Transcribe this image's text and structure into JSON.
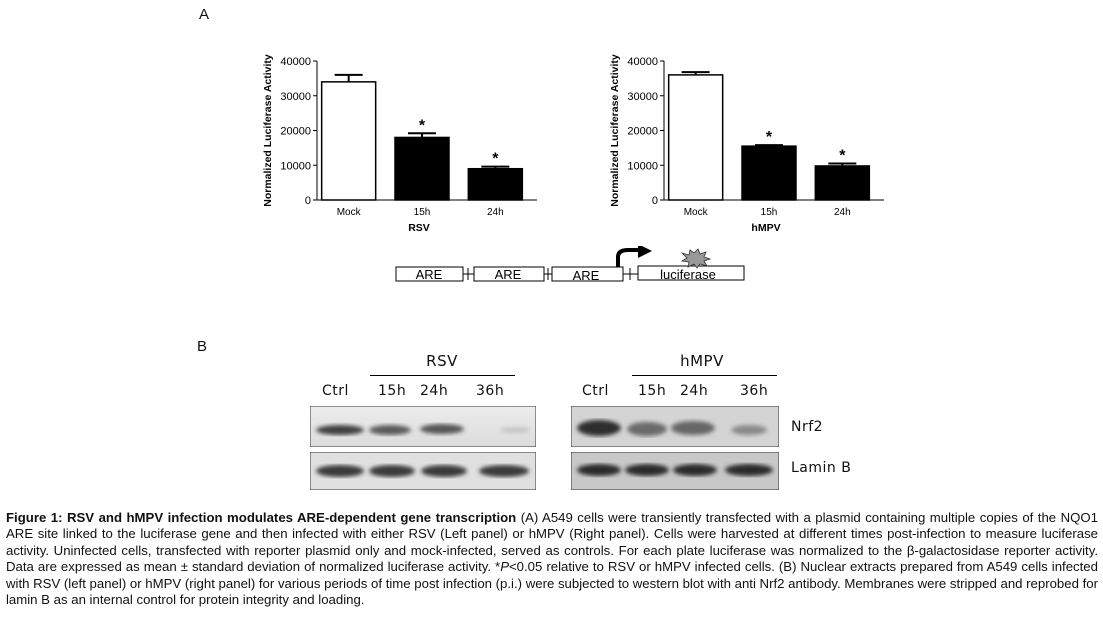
{
  "panel_a_label": "A",
  "panel_b_label": "B",
  "chart_data": [
    {
      "type": "bar",
      "categories": [
        "Mock",
        "15h",
        "24h"
      ],
      "values": [
        34000,
        18000,
        9000
      ],
      "error": [
        2000,
        1200,
        600
      ],
      "significance": [
        "",
        "*",
        "*"
      ],
      "fills": [
        "#ffffff",
        "#000000",
        "#000000"
      ],
      "xlabel": "RSV",
      "ylabel": "Normalized Luciferase Activity",
      "ylim": [
        0,
        40000
      ],
      "yticks": [
        "0",
        "10000",
        "20000",
        "30000",
        "40000"
      ]
    },
    {
      "type": "bar",
      "categories": [
        "Mock",
        "15h",
        "24h"
      ],
      "values": [
        36000,
        15500,
        9800
      ],
      "error": [
        800,
        300,
        700
      ],
      "significance": [
        "",
        "*",
        "*"
      ],
      "fills": [
        "#ffffff",
        "#000000",
        "#000000"
      ],
      "xlabel": "hMPV",
      "ylabel": "Normalized Luciferase Activity",
      "ylim": [
        0,
        40000
      ],
      "yticks": [
        "0",
        "10000",
        "20000",
        "30000",
        "40000"
      ]
    }
  ],
  "construct": {
    "boxes": [
      "ARE",
      "ARE",
      "ARE"
    ],
    "reporter": "luciferase"
  },
  "western": {
    "left_group": "RSV",
    "right_group": "hMPV",
    "left_lanes": [
      "Ctrl",
      "15h",
      "24h",
      "36h"
    ],
    "right_lanes": [
      "Ctrl",
      "15h",
      "24h",
      "36h"
    ],
    "rows": [
      "Nrf2",
      "Lamin B"
    ]
  },
  "caption": {
    "title": "Figure 1: RSV and hMPV infection modulates ARE-dependent gene transcription",
    "part1": " (A) A549 cells were transiently transfected with a plasmid containing multiple copies of the NQO1 ARE site linked to the luciferase gene and then infected with either RSV (Left panel) or hMPV (Right panel). Cells were harvested at different times post-infection to measure luciferase activity. Uninfected cells, transfected with reporter plasmid only and mock-infected, served as controls. For each plate luciferase was normalized to the β-galactosidase reporter activity. Data are expressed as mean ± standard deviation of normalized luciferase activity. *",
    "p_symbol": "P",
    "part2": "<0.05 relative to RSV or hMPV infected cells. (B) Nuclear extracts prepared from A549 cells infected with RSV (left panel) or hMPV (right panel) for various periods of time post infection (p.i.) were subjected to western blot with anti Nrf2 antibody. Membranes were stripped and reprobed for lamin B as an internal control for protein integrity and loading."
  }
}
